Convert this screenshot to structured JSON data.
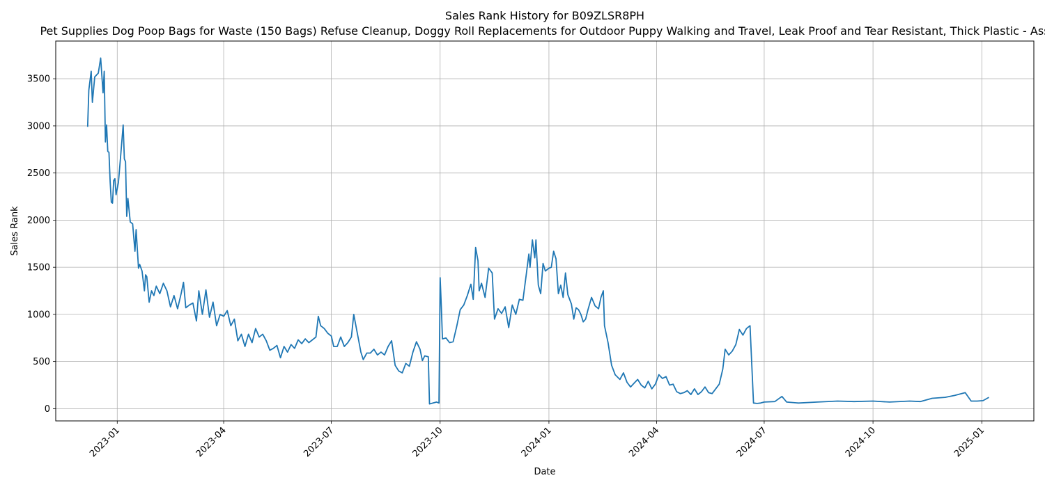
{
  "chart_data": {
    "type": "line",
    "title": "Sales Rank History for B09ZLSR8PH",
    "subtitle": "Pet Supplies Dog Poop Bags for Waste (150 Bags) Refuse Cleanup, Doggy Roll Replacements for Outdoor Puppy Walking and Travel, Leak Proof and Tear Resistant, Thick Plastic - Ass",
    "xlabel": "Date",
    "ylabel": "Sales Rank",
    "xlim": [
      "2022-11-10",
      "2025-02-14"
    ],
    "ylim": [
      -130,
      3900
    ],
    "grid": true,
    "legend": "none",
    "line_color": "#1f77b4",
    "x_ticks": [
      "2023-01-01",
      "2023-04-01",
      "2023-07-01",
      "2023-10-01",
      "2024-01-01",
      "2024-04-01",
      "2024-07-01",
      "2024-10-01",
      "2025-01-01"
    ],
    "x_tick_labels": [
      "2023-01",
      "2023-04",
      "2023-07",
      "2023-10",
      "2024-01",
      "2024-04",
      "2024-07",
      "2024-10",
      "2025-01"
    ],
    "y_ticks": [
      0,
      500,
      1000,
      1500,
      2000,
      2500,
      3000,
      3500
    ],
    "y_tick_labels": [
      "0",
      "500",
      "1000",
      "1500",
      "2000",
      "2500",
      "3000",
      "3500"
    ],
    "series": [
      {
        "points": [
          [
            "2022-12-07",
            2990
          ],
          [
            "2022-12-08",
            3380
          ],
          [
            "2022-12-10",
            3580
          ],
          [
            "2022-12-11",
            3250
          ],
          [
            "2022-12-13",
            3520
          ],
          [
            "2022-12-16",
            3560
          ],
          [
            "2022-12-18",
            3720
          ],
          [
            "2022-12-20",
            3350
          ],
          [
            "2022-12-21",
            3580
          ],
          [
            "2022-12-22",
            2830
          ],
          [
            "2022-12-23",
            3010
          ],
          [
            "2022-12-24",
            2730
          ],
          [
            "2022-12-25",
            2720
          ],
          [
            "2022-12-26",
            2410
          ],
          [
            "2022-12-27",
            2190
          ],
          [
            "2022-12-28",
            2180
          ],
          [
            "2022-12-29",
            2420
          ],
          [
            "2022-12-30",
            2440
          ],
          [
            "2022-12-31",
            2270
          ],
          [
            "2023-01-02",
            2400
          ],
          [
            "2023-01-04",
            2700
          ],
          [
            "2023-01-06",
            3010
          ],
          [
            "2023-01-07",
            2650
          ],
          [
            "2023-01-08",
            2620
          ],
          [
            "2023-01-09",
            2040
          ],
          [
            "2023-01-10",
            2230
          ],
          [
            "2023-01-12",
            1980
          ],
          [
            "2023-01-14",
            1960
          ],
          [
            "2023-01-16",
            1670
          ],
          [
            "2023-01-17",
            1900
          ],
          [
            "2023-01-19",
            1490
          ],
          [
            "2023-01-20",
            1530
          ],
          [
            "2023-01-22",
            1460
          ],
          [
            "2023-01-24",
            1250
          ],
          [
            "2023-01-25",
            1420
          ],
          [
            "2023-01-26",
            1400
          ],
          [
            "2023-01-28",
            1130
          ],
          [
            "2023-01-30",
            1250
          ],
          [
            "2023-02-01",
            1200
          ],
          [
            "2023-02-03",
            1300
          ],
          [
            "2023-02-06",
            1220
          ],
          [
            "2023-02-09",
            1330
          ],
          [
            "2023-02-12",
            1250
          ],
          [
            "2023-02-15",
            1080
          ],
          [
            "2023-02-18",
            1200
          ],
          [
            "2023-02-21",
            1060
          ],
          [
            "2023-02-24",
            1220
          ],
          [
            "2023-02-26",
            1340
          ],
          [
            "2023-02-28",
            1070
          ],
          [
            "2023-03-03",
            1100
          ],
          [
            "2023-03-06",
            1120
          ],
          [
            "2023-03-09",
            930
          ],
          [
            "2023-03-11",
            1250
          ],
          [
            "2023-03-14",
            1000
          ],
          [
            "2023-03-17",
            1260
          ],
          [
            "2023-03-20",
            970
          ],
          [
            "2023-03-23",
            1130
          ],
          [
            "2023-03-26",
            880
          ],
          [
            "2023-03-29",
            1000
          ],
          [
            "2023-04-01",
            980
          ],
          [
            "2023-04-04",
            1040
          ],
          [
            "2023-04-07",
            880
          ],
          [
            "2023-04-10",
            950
          ],
          [
            "2023-04-13",
            720
          ],
          [
            "2023-04-16",
            790
          ],
          [
            "2023-04-19",
            660
          ],
          [
            "2023-04-22",
            790
          ],
          [
            "2023-04-25",
            700
          ],
          [
            "2023-04-28",
            850
          ],
          [
            "2023-05-01",
            760
          ],
          [
            "2023-05-04",
            790
          ],
          [
            "2023-05-07",
            720
          ],
          [
            "2023-05-10",
            620
          ],
          [
            "2023-05-13",
            640
          ],
          [
            "2023-05-16",
            670
          ],
          [
            "2023-05-19",
            540
          ],
          [
            "2023-05-22",
            660
          ],
          [
            "2023-05-25",
            600
          ],
          [
            "2023-05-28",
            680
          ],
          [
            "2023-05-31",
            640
          ],
          [
            "2023-06-03",
            730
          ],
          [
            "2023-06-06",
            690
          ],
          [
            "2023-06-09",
            740
          ],
          [
            "2023-06-12",
            700
          ],
          [
            "2023-06-15",
            730
          ],
          [
            "2023-06-18",
            760
          ],
          [
            "2023-06-20",
            980
          ],
          [
            "2023-06-22",
            880
          ],
          [
            "2023-06-25",
            850
          ],
          [
            "2023-06-28",
            800
          ],
          [
            "2023-07-01",
            770
          ],
          [
            "2023-07-03",
            660
          ],
          [
            "2023-07-06",
            660
          ],
          [
            "2023-07-09",
            760
          ],
          [
            "2023-07-12",
            660
          ],
          [
            "2023-07-15",
            700
          ],
          [
            "2023-07-18",
            760
          ],
          [
            "2023-07-20",
            1000
          ],
          [
            "2023-07-23",
            800
          ],
          [
            "2023-07-26",
            600
          ],
          [
            "2023-07-28",
            520
          ],
          [
            "2023-07-31",
            590
          ],
          [
            "2023-08-03",
            590
          ],
          [
            "2023-08-06",
            630
          ],
          [
            "2023-08-09",
            570
          ],
          [
            "2023-08-12",
            600
          ],
          [
            "2023-08-15",
            570
          ],
          [
            "2023-08-18",
            660
          ],
          [
            "2023-08-21",
            720
          ],
          [
            "2023-08-24",
            460
          ],
          [
            "2023-08-27",
            400
          ],
          [
            "2023-08-30",
            380
          ],
          [
            "2023-09-02",
            480
          ],
          [
            "2023-09-05",
            450
          ],
          [
            "2023-09-08",
            600
          ],
          [
            "2023-09-11",
            710
          ],
          [
            "2023-09-14",
            630
          ],
          [
            "2023-09-16",
            510
          ],
          [
            "2023-09-18",
            560
          ],
          [
            "2023-09-21",
            550
          ],
          [
            "2023-09-22",
            50
          ],
          [
            "2023-09-25",
            60
          ],
          [
            "2023-09-28",
            70
          ],
          [
            "2023-09-30",
            60
          ],
          [
            "2023-10-01",
            1390
          ],
          [
            "2023-10-02",
            1080
          ],
          [
            "2023-10-03",
            740
          ],
          [
            "2023-10-06",
            750
          ],
          [
            "2023-10-09",
            700
          ],
          [
            "2023-10-12",
            710
          ],
          [
            "2023-10-15",
            870
          ],
          [
            "2023-10-18",
            1050
          ],
          [
            "2023-10-21",
            1100
          ],
          [
            "2023-10-24",
            1200
          ],
          [
            "2023-10-27",
            1320
          ],
          [
            "2023-10-29",
            1160
          ],
          [
            "2023-10-31",
            1710
          ],
          [
            "2023-11-02",
            1570
          ],
          [
            "2023-11-03",
            1250
          ],
          [
            "2023-11-05",
            1330
          ],
          [
            "2023-11-08",
            1180
          ],
          [
            "2023-11-11",
            1490
          ],
          [
            "2023-11-14",
            1440
          ],
          [
            "2023-11-16",
            950
          ],
          [
            "2023-11-19",
            1060
          ],
          [
            "2023-11-22",
            1010
          ],
          [
            "2023-11-25",
            1080
          ],
          [
            "2023-11-28",
            860
          ],
          [
            "2023-12-01",
            1100
          ],
          [
            "2023-12-04",
            1000
          ],
          [
            "2023-12-07",
            1160
          ],
          [
            "2023-12-10",
            1150
          ],
          [
            "2023-12-13",
            1440
          ],
          [
            "2023-12-15",
            1640
          ],
          [
            "2023-12-16",
            1500
          ],
          [
            "2023-12-18",
            1790
          ],
          [
            "2023-12-20",
            1600
          ],
          [
            "2023-12-21",
            1790
          ],
          [
            "2023-12-23",
            1310
          ],
          [
            "2023-12-25",
            1220
          ],
          [
            "2023-12-27",
            1540
          ],
          [
            "2023-12-29",
            1460
          ],
          [
            "2024-01-01",
            1490
          ],
          [
            "2024-01-03",
            1500
          ],
          [
            "2024-01-05",
            1670
          ],
          [
            "2024-01-07",
            1590
          ],
          [
            "2024-01-09",
            1220
          ],
          [
            "2024-01-11",
            1310
          ],
          [
            "2024-01-13",
            1180
          ],
          [
            "2024-01-15",
            1440
          ],
          [
            "2024-01-17",
            1210
          ],
          [
            "2024-01-20",
            1110
          ],
          [
            "2024-01-22",
            950
          ],
          [
            "2024-01-24",
            1070
          ],
          [
            "2024-01-26",
            1050
          ],
          [
            "2024-01-28",
            1000
          ],
          [
            "2024-01-30",
            920
          ],
          [
            "2024-02-01",
            950
          ],
          [
            "2024-02-03",
            1050
          ],
          [
            "2024-02-06",
            1180
          ],
          [
            "2024-02-09",
            1090
          ],
          [
            "2024-02-12",
            1060
          ],
          [
            "2024-02-14",
            1180
          ],
          [
            "2024-02-16",
            1250
          ],
          [
            "2024-02-17",
            880
          ],
          [
            "2024-02-20",
            700
          ],
          [
            "2024-02-23",
            460
          ],
          [
            "2024-02-26",
            360
          ],
          [
            "2024-03-01",
            310
          ],
          [
            "2024-03-04",
            380
          ],
          [
            "2024-03-07",
            280
          ],
          [
            "2024-03-10",
            230
          ],
          [
            "2024-03-13",
            270
          ],
          [
            "2024-03-16",
            310
          ],
          [
            "2024-03-19",
            250
          ],
          [
            "2024-03-22",
            220
          ],
          [
            "2024-03-25",
            290
          ],
          [
            "2024-03-28",
            210
          ],
          [
            "2024-03-31",
            260
          ],
          [
            "2024-04-03",
            360
          ],
          [
            "2024-04-06",
            320
          ],
          [
            "2024-04-09",
            340
          ],
          [
            "2024-04-12",
            250
          ],
          [
            "2024-04-15",
            260
          ],
          [
            "2024-04-18",
            180
          ],
          [
            "2024-04-21",
            160
          ],
          [
            "2024-04-24",
            170
          ],
          [
            "2024-04-27",
            190
          ],
          [
            "2024-04-30",
            150
          ],
          [
            "2024-05-03",
            210
          ],
          [
            "2024-05-06",
            150
          ],
          [
            "2024-05-09",
            180
          ],
          [
            "2024-05-12",
            230
          ],
          [
            "2024-05-15",
            170
          ],
          [
            "2024-05-18",
            160
          ],
          [
            "2024-05-21",
            210
          ],
          [
            "2024-05-24",
            260
          ],
          [
            "2024-05-27",
            420
          ],
          [
            "2024-05-29",
            630
          ],
          [
            "2024-06-01",
            570
          ],
          [
            "2024-06-04",
            610
          ],
          [
            "2024-06-07",
            680
          ],
          [
            "2024-06-10",
            840
          ],
          [
            "2024-06-13",
            780
          ],
          [
            "2024-06-16",
            850
          ],
          [
            "2024-06-19",
            880
          ],
          [
            "2024-06-22",
            60
          ],
          [
            "2024-06-25",
            55
          ],
          [
            "2024-06-28",
            60
          ],
          [
            "2024-07-01",
            70
          ],
          [
            "2024-07-10",
            75
          ],
          [
            "2024-07-16",
            130
          ],
          [
            "2024-07-20",
            70
          ],
          [
            "2024-07-30",
            60
          ],
          [
            "2024-08-15",
            70
          ],
          [
            "2024-09-01",
            80
          ],
          [
            "2024-09-15",
            75
          ],
          [
            "2024-10-01",
            80
          ],
          [
            "2024-10-15",
            70
          ],
          [
            "2024-11-01",
            80
          ],
          [
            "2024-11-10",
            75
          ],
          [
            "2024-11-20",
            110
          ],
          [
            "2024-12-01",
            120
          ],
          [
            "2024-12-09",
            140
          ],
          [
            "2024-12-18",
            170
          ],
          [
            "2024-12-23",
            80
          ],
          [
            "2024-12-28",
            80
          ],
          [
            "2025-01-02",
            85
          ],
          [
            "2025-01-07",
            120
          ]
        ]
      }
    ]
  }
}
